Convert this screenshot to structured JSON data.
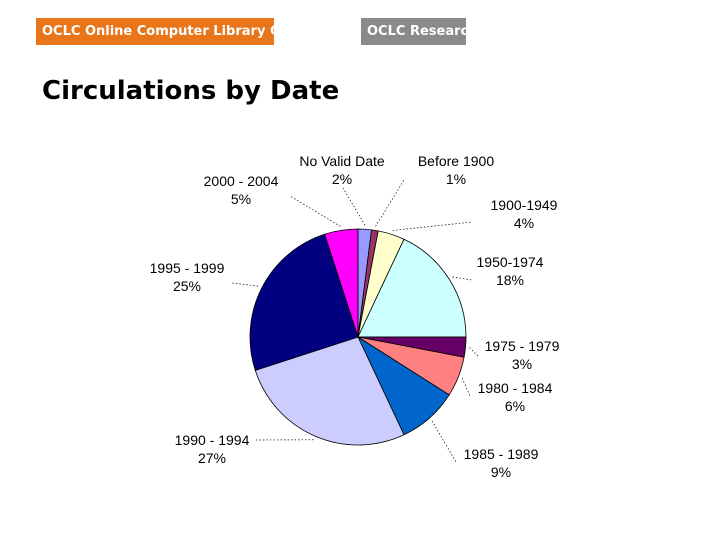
{
  "header": {
    "logo_left": "OCLC Online Computer Library Center",
    "logo_right": "OCLC Research"
  },
  "page_title": "Circulations by Date",
  "chart_data": {
    "type": "pie",
    "title": "Circulations by Date",
    "slices": [
      {
        "label": "No Valid Date",
        "value": 2,
        "value_label": "2%",
        "color": "#9999ff"
      },
      {
        "label": "Before 1900",
        "value": 1,
        "value_label": "1%",
        "color": "#993366"
      },
      {
        "label": "1900-1949",
        "value": 4,
        "value_label": "4%",
        "color": "#ffffcc"
      },
      {
        "label": "1950-1974",
        "value": 18,
        "value_label": "18%",
        "color": "#ccffff"
      },
      {
        "label": "1975 - 1979",
        "value": 3,
        "value_label": "3%",
        "color": "#660066"
      },
      {
        "label": "1980 - 1984",
        "value": 6,
        "value_label": "6%",
        "color": "#ff8080"
      },
      {
        "label": "1985 - 1989",
        "value": 9,
        "value_label": "9%",
        "color": "#0066cc"
      },
      {
        "label": "1990 - 1994",
        "value": 27,
        "value_label": "27%",
        "color": "#ccccff"
      },
      {
        "label": "1995 - 1999",
        "value": 25,
        "value_label": "25%",
        "color": "#000080"
      },
      {
        "label": "2000 - 2004",
        "value": 5,
        "value_label": "5%",
        "color": "#ff00ff"
      }
    ],
    "legend": "none",
    "labels": "outside with leader lines"
  }
}
